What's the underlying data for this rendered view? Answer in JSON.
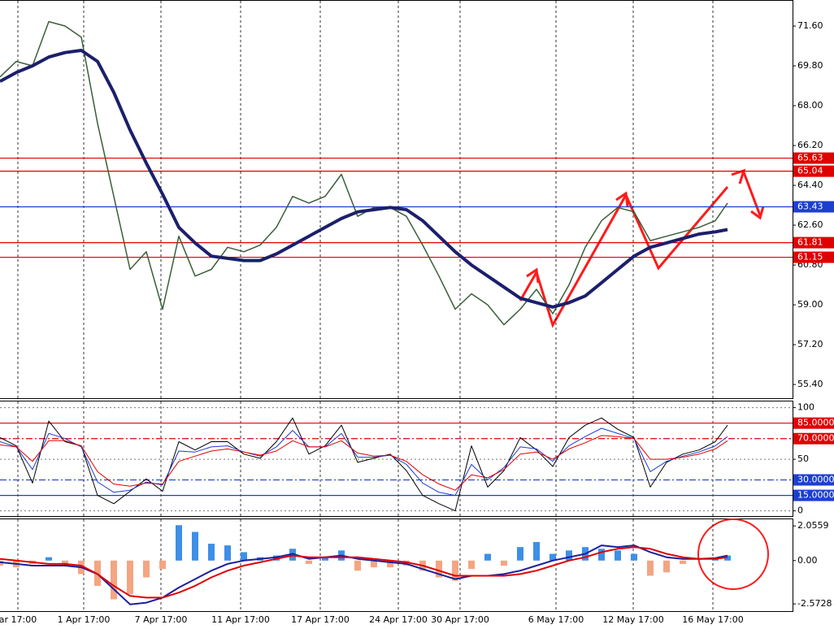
{
  "chart_data": [
    {
      "type": "line",
      "x": [
        0,
        2,
        4,
        6,
        8,
        10,
        12,
        14,
        16,
        18,
        20,
        22,
        24,
        26,
        28,
        30,
        32,
        34,
        36,
        38,
        40,
        42,
        44,
        46,
        48,
        50,
        52,
        54,
        56,
        58,
        60,
        62,
        64,
        66,
        68,
        70,
        72,
        74,
        76,
        78,
        80,
        82,
        84,
        86,
        88,
        89.5
      ],
      "xlim": [
        0,
        97.5
      ],
      "xticks": [
        {
          "value": 2.2,
          "label": "ar 17:00"
        },
        {
          "value": 10.3,
          "label": "1 Apr 17:00"
        },
        {
          "value": 19.8,
          "label": "7 Apr 17:00"
        },
        {
          "value": 29.6,
          "label": "11 Apr 17:00"
        },
        {
          "value": 39.4,
          "label": "17 Apr 17:00"
        },
        {
          "value": 49.0,
          "label": "24 Apr 17:00"
        },
        {
          "value": 56.6,
          "label": "30 Apr 17:00"
        },
        {
          "value": 68.4,
          "label": "6 May 17:00"
        },
        {
          "value": 77.9,
          "label": "12 May 17:00"
        },
        {
          "value": 87.7,
          "label": "16 May 17:00"
        }
      ],
      "xgrid": true,
      "ylim": [
        54.78,
        72.74
      ],
      "yticks": [
        {
          "value": 71.6,
          "label": "71.60"
        },
        {
          "value": 69.8,
          "label": "69.80"
        },
        {
          "value": 68.0,
          "label": "68.00"
        },
        {
          "value": 66.2,
          "label": "66.20"
        },
        {
          "value": 64.4,
          "label": "64.40"
        },
        {
          "value": 62.6,
          "label": "62.60"
        },
        {
          "value": 60.8,
          "label": "60.80"
        },
        {
          "value": 59.0,
          "label": "59.00"
        },
        {
          "value": 57.2,
          "label": "57.20"
        },
        {
          "value": 55.4,
          "label": "55.40"
        }
      ],
      "grid": false,
      "hlines": [
        {
          "value": 65.63,
          "color": "#e00000",
          "style": "solid"
        },
        {
          "value": 65.04,
          "color": "#e00000",
          "style": "solid"
        },
        {
          "value": 63.43,
          "color": "#1c3fd0",
          "style": "solid"
        },
        {
          "value": 61.81,
          "color": "#e00000",
          "style": "solid"
        },
        {
          "value": 61.15,
          "color": "#e00000",
          "style": "solid"
        }
      ],
      "series": [
        {
          "color": "#3a5f3a",
          "width": 1.5,
          "values": [
            69.3,
            70.0,
            69.8,
            71.8,
            71.6,
            71.1,
            67.2,
            63.9,
            60.6,
            61.4,
            58.8,
            62.1,
            60.3,
            60.6,
            61.6,
            61.4,
            61.7,
            62.5,
            63.9,
            63.6,
            63.9,
            64.9,
            63.0,
            63.4,
            63.4,
            63.0,
            61.7,
            60.3,
            58.8,
            59.5,
            59.0,
            58.1,
            58.8,
            59.7,
            58.6,
            59.9,
            61.6,
            62.8,
            63.4,
            63.2,
            61.9,
            62.1,
            62.3,
            62.5,
            62.8,
            63.6
          ]
        },
        {
          "color": "#1c1f6b",
          "width": 4,
          "values": [
            69.1,
            69.5,
            69.8,
            70.2,
            70.4,
            70.5,
            70.0,
            68.6,
            66.9,
            65.4,
            64.0,
            62.5,
            61.8,
            61.2,
            61.1,
            61.0,
            61.0,
            61.3,
            61.7,
            62.1,
            62.5,
            62.9,
            63.2,
            63.3,
            63.4,
            63.3,
            62.8,
            62.1,
            61.4,
            60.8,
            60.3,
            59.8,
            59.3,
            59.1,
            58.9,
            59.1,
            59.4,
            60.0,
            60.6,
            61.2,
            61.6,
            61.8,
            62.0,
            62.2,
            62.3,
            62.4
          ]
        }
      ]
    },
    {
      "type": "line",
      "ylim": [
        -5,
        106
      ],
      "yticks": [
        100,
        50,
        0
      ],
      "grid": true,
      "hlines": [
        {
          "value": 85,
          "label": "85.0000",
          "color": "#e00000",
          "style": "solid"
        },
        {
          "value": 70,
          "label": "70.0000",
          "color": "#e00000",
          "style": "dashdot"
        },
        {
          "value": 30,
          "label": "30.0000",
          "color": "#1c3fd0",
          "style": "dashdot"
        },
        {
          "value": 15,
          "label": "15.0000",
          "color": "#1c3fd0",
          "style": "solid"
        }
      ],
      "series": [
        {
          "color": "#000000",
          "width": 1,
          "values": [
            71,
            63,
            27,
            87,
            67,
            63,
            15,
            7,
            19,
            31,
            19,
            67,
            59,
            67,
            67,
            55,
            51,
            67,
            90,
            55,
            63,
            83,
            47,
            51,
            55,
            39,
            15,
            7,
            0,
            63,
            23,
            39,
            71,
            59,
            43,
            71,
            83,
            90,
            79,
            71,
            23,
            47,
            55,
            59,
            67,
            83
          ]
        },
        {
          "color": "#1c3fd0",
          "width": 1,
          "values": [
            67,
            62,
            40,
            75,
            70,
            62,
            28,
            18,
            20,
            28,
            25,
            58,
            57,
            62,
            63,
            57,
            53,
            62,
            78,
            62,
            62,
            75,
            52,
            52,
            54,
            45,
            27,
            18,
            15,
            45,
            30,
            42,
            62,
            60,
            48,
            63,
            72,
            80,
            75,
            70,
            38,
            48,
            53,
            57,
            63,
            72
          ]
        },
        {
          "color": "#e00000",
          "width": 1,
          "values": [
            64,
            62,
            48,
            68,
            68,
            63,
            38,
            26,
            24,
            27,
            26,
            48,
            53,
            58,
            60,
            57,
            54,
            58,
            68,
            62,
            62,
            68,
            56,
            53,
            54,
            48,
            35,
            26,
            20,
            35,
            32,
            40,
            55,
            57,
            50,
            60,
            66,
            73,
            72,
            70,
            50,
            50,
            52,
            55,
            60,
            68
          ]
        }
      ]
    },
    {
      "type": "bar",
      "ylim": [
        -3.0,
        2.45
      ],
      "yticks": [
        {
          "value": 2.0559,
          "label": "2.0559"
        },
        {
          "value": 0,
          "label": "0.00"
        },
        {
          "value": -2.5728,
          "label": "-2.5728"
        }
      ],
      "grid": false,
      "colors": [
        "#3d8fe8",
        "#f4a582"
      ],
      "values": [
        -0.3,
        -0.4,
        -0.2,
        0.2,
        -0.3,
        -0.8,
        -1.5,
        -2.3,
        -2.0,
        -1.0,
        -0.5,
        2.1,
        1.7,
        1.0,
        0.9,
        0.5,
        0.2,
        0.3,
        0.7,
        -0.2,
        0.2,
        0.6,
        -0.6,
        -0.4,
        -0.4,
        -0.3,
        -0.6,
        -1.0,
        -1.2,
        -0.5,
        0.4,
        -0.3,
        0.8,
        1.1,
        0.4,
        0.6,
        0.8,
        0.7,
        0.6,
        0.4,
        -0.9,
        -0.7,
        -0.2,
        0.0,
        0.1,
        0.3
      ],
      "series": [
        {
          "color": "#1c1f9b",
          "width": 2,
          "values": [
            -0.1,
            -0.2,
            -0.3,
            -0.3,
            -0.3,
            -0.4,
            -0.8,
            -1.7,
            -2.6,
            -2.5,
            -2.2,
            -1.6,
            -1.1,
            -0.6,
            -0.2,
            0.0,
            0.1,
            0.2,
            0.4,
            0.1,
            0.2,
            0.3,
            0.1,
            0.0,
            -0.1,
            -0.2,
            -0.5,
            -0.8,
            -1.1,
            -0.9,
            -0.9,
            -0.8,
            -0.6,
            -0.3,
            0.0,
            0.2,
            0.4,
            0.9,
            0.8,
            0.9,
            0.5,
            0.2,
            0.1,
            0.1,
            0.15,
            0.3
          ]
        },
        {
          "color": "#e00000",
          "width": 2,
          "values": [
            0.1,
            0.0,
            -0.1,
            -0.2,
            -0.2,
            -0.3,
            -0.8,
            -1.5,
            -2.1,
            -2.2,
            -2.2,
            -1.9,
            -1.5,
            -1.0,
            -0.6,
            -0.3,
            -0.1,
            0.1,
            0.3,
            0.2,
            0.2,
            0.2,
            0.2,
            0.1,
            0.0,
            -0.1,
            -0.3,
            -0.6,
            -0.9,
            -0.9,
            -0.9,
            -0.9,
            -0.8,
            -0.6,
            -0.3,
            0.0,
            0.2,
            0.5,
            0.7,
            0.8,
            0.7,
            0.4,
            0.2,
            0.1,
            0.1,
            0.2
          ]
        }
      ]
    }
  ]
}
